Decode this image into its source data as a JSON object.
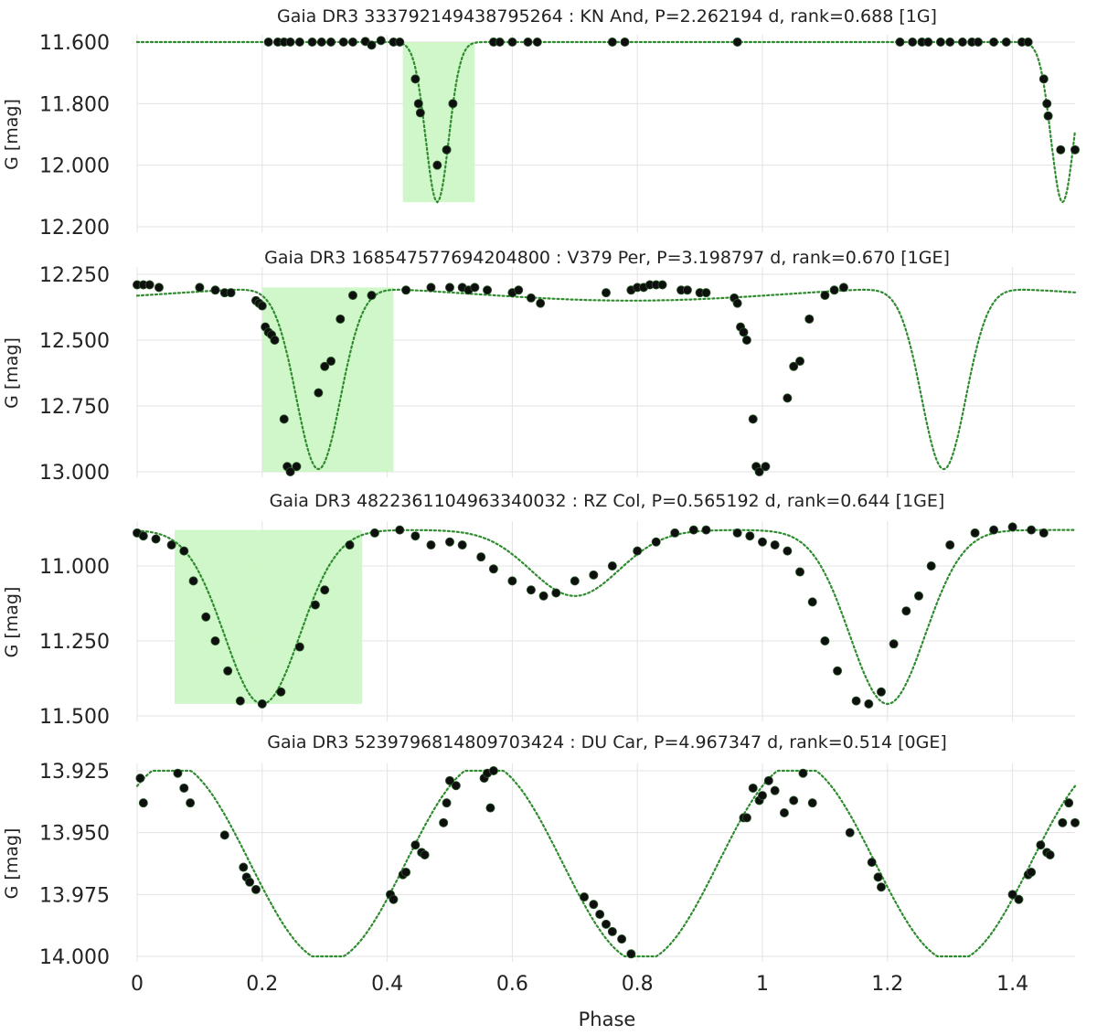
{
  "chart_data": [
    {
      "type": "scatter",
      "title": "Gaia DR3 333792149438795264 : KN And, P=2.262194 d, rank=0.688 [1G]",
      "ylabel": "G [mag]",
      "y_inverted": true,
      "ylim": [
        11.6,
        12.2
      ],
      "yticks": [
        11.6,
        11.8,
        12.0,
        12.2
      ],
      "ytick_labels": [
        "11.600",
        "11.800",
        "12.000",
        "12.200"
      ],
      "highlight": {
        "x": [
          0.425,
          0.54
        ],
        "y": [
          11.6,
          12.12
        ],
        "color": "#cdf7c6"
      },
      "model": {
        "type": "eclipse",
        "base": 11.6,
        "centers": [
          0.48,
          1.48
        ],
        "depth": 0.52,
        "width": 0.026,
        "color": "#2e8b2e"
      },
      "points": [
        [
          0.21,
          11.6
        ],
        [
          0.225,
          11.6
        ],
        [
          0.235,
          11.6
        ],
        [
          0.245,
          11.6
        ],
        [
          0.26,
          11.6
        ],
        [
          0.28,
          11.6
        ],
        [
          0.295,
          11.6
        ],
        [
          0.31,
          11.6
        ],
        [
          0.33,
          11.6
        ],
        [
          0.345,
          11.6
        ],
        [
          0.365,
          11.598
        ],
        [
          0.375,
          11.61
        ],
        [
          0.39,
          11.595
        ],
        [
          0.41,
          11.6
        ],
        [
          0.42,
          11.6
        ],
        [
          0.445,
          11.72
        ],
        [
          0.45,
          11.8
        ],
        [
          0.453,
          11.83
        ],
        [
          0.48,
          12.0
        ],
        [
          0.495,
          11.95
        ],
        [
          0.505,
          11.8
        ],
        [
          0.57,
          11.6
        ],
        [
          0.58,
          11.6
        ],
        [
          0.6,
          11.6
        ],
        [
          0.625,
          11.6
        ],
        [
          0.64,
          11.6
        ],
        [
          0.76,
          11.6
        ],
        [
          0.78,
          11.6
        ],
        [
          0.96,
          11.6
        ],
        [
          1.22,
          11.6
        ],
        [
          1.24,
          11.6
        ],
        [
          1.255,
          11.6
        ],
        [
          1.265,
          11.6
        ],
        [
          1.285,
          11.6
        ],
        [
          1.3,
          11.6
        ],
        [
          1.32,
          11.6
        ],
        [
          1.335,
          11.6
        ],
        [
          1.345,
          11.6
        ],
        [
          1.37,
          11.6
        ],
        [
          1.39,
          11.6
        ],
        [
          1.415,
          11.6
        ],
        [
          1.425,
          11.6
        ],
        [
          1.45,
          11.72
        ],
        [
          1.455,
          11.8
        ],
        [
          1.457,
          11.84
        ],
        [
          1.477,
          11.95
        ],
        [
          1.5,
          11.95
        ]
      ]
    },
    {
      "type": "scatter",
      "title": "Gaia DR3 168547577694204800 : V379 Per, P=3.198797 d, rank=0.670 [1GE]",
      "ylabel": "G [mag]",
      "y_inverted": true,
      "ylim": [
        12.25,
        13.0
      ],
      "yticks": [
        12.25,
        12.5,
        12.75,
        13.0
      ],
      "ytick_labels": [
        "12.250",
        "12.500",
        "12.750",
        "13.000"
      ],
      "highlight": {
        "x": [
          0.2,
          0.41
        ],
        "y": [
          12.3,
          13.0
        ],
        "color": "#cdf7c6"
      },
      "model": {
        "type": "eclipse2",
        "base": 12.3,
        "amp2": 0.05,
        "centers": [
          0.29,
          1.29
        ],
        "depth": 0.69,
        "width": 0.05,
        "color": "#2e8b2e"
      },
      "points": [
        [
          0.0,
          12.29
        ],
        [
          0.01,
          12.29
        ],
        [
          0.02,
          12.29
        ],
        [
          0.035,
          12.3
        ],
        [
          0.1,
          12.3
        ],
        [
          0.125,
          12.31
        ],
        [
          0.14,
          12.32
        ],
        [
          0.15,
          12.32
        ],
        [
          0.19,
          12.35
        ],
        [
          0.195,
          12.36
        ],
        [
          0.2,
          12.37
        ],
        [
          0.205,
          12.45
        ],
        [
          0.21,
          12.47
        ],
        [
          0.215,
          12.48
        ],
        [
          0.22,
          12.5
        ],
        [
          0.235,
          12.8
        ],
        [
          0.24,
          12.98
        ],
        [
          0.245,
          13.0
        ],
        [
          0.255,
          12.98
        ],
        [
          0.29,
          12.7
        ],
        [
          0.3,
          12.6
        ],
        [
          0.31,
          12.58
        ],
        [
          0.325,
          12.42
        ],
        [
          0.345,
          12.33
        ],
        [
          0.375,
          12.33
        ],
        [
          0.43,
          12.31
        ],
        [
          0.47,
          12.3
        ],
        [
          0.5,
          12.3
        ],
        [
          0.52,
          12.3
        ],
        [
          0.53,
          12.31
        ],
        [
          0.54,
          12.3
        ],
        [
          0.56,
          12.31
        ],
        [
          0.6,
          12.32
        ],
        [
          0.61,
          12.31
        ],
        [
          0.63,
          12.34
        ],
        [
          0.645,
          12.36
        ],
        [
          0.75,
          12.32
        ],
        [
          0.79,
          12.31
        ],
        [
          0.8,
          12.3
        ],
        [
          0.81,
          12.3
        ],
        [
          0.82,
          12.29
        ],
        [
          0.83,
          12.29
        ],
        [
          0.84,
          12.29
        ],
        [
          0.87,
          12.31
        ],
        [
          0.88,
          12.31
        ],
        [
          0.9,
          12.32
        ],
        [
          0.91,
          12.32
        ],
        [
          0.955,
          12.34
        ],
        [
          0.96,
          12.36
        ],
        [
          0.965,
          12.45
        ],
        [
          0.97,
          12.47
        ],
        [
          0.975,
          12.5
        ],
        [
          0.985,
          12.8
        ],
        [
          0.99,
          12.98
        ],
        [
          0.995,
          13.0
        ],
        [
          1.005,
          12.98
        ],
        [
          1.04,
          12.72
        ],
        [
          1.05,
          12.6
        ],
        [
          1.06,
          12.58
        ],
        [
          1.075,
          12.42
        ],
        [
          1.1,
          12.33
        ],
        [
          1.115,
          12.31
        ],
        [
          1.13,
          12.3
        ]
      ]
    },
    {
      "type": "scatter",
      "title": "Gaia DR3 4822361104963340032 : RZ Col, P=0.565192 d, rank=0.644 [1GE]",
      "ylabel": "G [mag]",
      "y_inverted": true,
      "ylim": [
        10.875,
        11.5
      ],
      "yticks": [
        11.0,
        11.25,
        11.5
      ],
      "ytick_labels": [
        "11.000",
        "11.250",
        "11.500"
      ],
      "highlight": {
        "x": [
          0.06,
          0.36
        ],
        "y": [
          10.88,
          11.46
        ],
        "color": "#cdf7c6"
      },
      "model": {
        "type": "wuma",
        "base": 10.88,
        "centers": [
          0.2,
          1.2
        ],
        "depth": 0.58,
        "width": 0.085,
        "sec_center": 0.7,
        "sec_depth": 0.22,
        "sec_width": 0.1,
        "color": "#2e8b2e"
      },
      "points": [
        [
          0.0,
          10.89
        ],
        [
          0.01,
          10.9
        ],
        [
          0.03,
          10.91
        ],
        [
          0.055,
          10.93
        ],
        [
          0.075,
          10.95
        ],
        [
          0.09,
          11.05
        ],
        [
          0.11,
          11.17
        ],
        [
          0.125,
          11.25
        ],
        [
          0.145,
          11.35
        ],
        [
          0.165,
          11.45
        ],
        [
          0.2,
          11.46
        ],
        [
          0.23,
          11.42
        ],
        [
          0.26,
          11.27
        ],
        [
          0.285,
          11.13
        ],
        [
          0.3,
          11.08
        ],
        [
          0.34,
          10.93
        ],
        [
          0.38,
          10.89
        ],
        [
          0.42,
          10.88
        ],
        [
          0.445,
          10.9
        ],
        [
          0.47,
          10.93
        ],
        [
          0.5,
          10.92
        ],
        [
          0.52,
          10.93
        ],
        [
          0.55,
          10.97
        ],
        [
          0.57,
          11.01
        ],
        [
          0.6,
          11.05
        ],
        [
          0.63,
          11.08
        ],
        [
          0.65,
          11.1
        ],
        [
          0.67,
          11.09
        ],
        [
          0.7,
          11.05
        ],
        [
          0.73,
          11.03
        ],
        [
          0.76,
          11.0
        ],
        [
          0.8,
          10.95
        ],
        [
          0.83,
          10.92
        ],
        [
          0.86,
          10.89
        ],
        [
          0.89,
          10.88
        ],
        [
          0.91,
          10.88
        ],
        [
          0.96,
          10.89
        ],
        [
          0.98,
          10.9
        ],
        [
          1.0,
          10.92
        ],
        [
          1.02,
          10.93
        ],
        [
          1.04,
          10.95
        ],
        [
          1.06,
          11.02
        ],
        [
          1.08,
          11.12
        ],
        [
          1.1,
          11.25
        ],
        [
          1.12,
          11.35
        ],
        [
          1.15,
          11.45
        ],
        [
          1.17,
          11.46
        ],
        [
          1.19,
          11.42
        ],
        [
          1.21,
          11.26
        ],
        [
          1.23,
          11.15
        ],
        [
          1.25,
          11.1
        ],
        [
          1.27,
          11.0
        ],
        [
          1.3,
          10.93
        ],
        [
          1.34,
          10.89
        ],
        [
          1.37,
          10.88
        ],
        [
          1.4,
          10.87
        ],
        [
          1.43,
          10.88
        ],
        [
          1.45,
          10.89
        ]
      ]
    },
    {
      "type": "scatter",
      "title": "Gaia DR3 5239796814809703424 : DU Car, P=4.967347 d, rank=0.514 [0GE]",
      "ylabel": "G [mag]",
      "y_inverted": true,
      "ylim": [
        13.925,
        14.0
      ],
      "yticks": [
        13.925,
        13.95,
        13.975,
        14.0
      ],
      "ytick_labels": [
        "13.925",
        "13.950",
        "13.975",
        "14.000"
      ],
      "model": {
        "type": "sine",
        "mid": 13.962,
        "amp": 0.04,
        "period": 0.5,
        "maxAt": 0.055,
        "color": "#2e8b2e"
      },
      "points": [
        [
          0.005,
          13.928
        ],
        [
          0.01,
          13.938
        ],
        [
          0.065,
          13.926
        ],
        [
          0.075,
          13.932
        ],
        [
          0.085,
          13.938
        ],
        [
          0.14,
          13.951
        ],
        [
          0.17,
          13.964
        ],
        [
          0.175,
          13.968
        ],
        [
          0.18,
          13.97
        ],
        [
          0.19,
          13.973
        ],
        [
          0.405,
          13.975
        ],
        [
          0.41,
          13.977
        ],
        [
          0.425,
          13.967
        ],
        [
          0.43,
          13.966
        ],
        [
          0.445,
          13.955
        ],
        [
          0.455,
          13.958
        ],
        [
          0.46,
          13.959
        ],
        [
          0.49,
          13.946
        ],
        [
          0.495,
          13.938
        ],
        [
          0.5,
          13.929
        ],
        [
          0.51,
          13.931
        ],
        [
          0.555,
          13.928
        ],
        [
          0.56,
          13.926
        ],
        [
          0.565,
          13.94
        ],
        [
          0.57,
          13.925
        ],
        [
          0.715,
          13.976
        ],
        [
          0.73,
          13.979
        ],
        [
          0.74,
          13.983
        ],
        [
          0.75,
          13.987
        ],
        [
          0.76,
          13.99
        ],
        [
          0.775,
          13.993
        ],
        [
          0.79,
          13.999
        ],
        [
          0.97,
          13.944
        ],
        [
          0.975,
          13.944
        ],
        [
          0.985,
          13.932
        ],
        [
          0.995,
          13.937
        ],
        [
          1.0,
          13.935
        ],
        [
          1.01,
          13.929
        ],
        [
          1.02,
          13.933
        ],
        [
          1.035,
          13.942
        ],
        [
          1.05,
          13.937
        ],
        [
          1.065,
          13.926
        ],
        [
          1.08,
          13.938
        ],
        [
          1.14,
          13.95
        ],
        [
          1.175,
          13.962
        ],
        [
          1.185,
          13.968
        ],
        [
          1.19,
          13.972
        ],
        [
          1.4,
          13.975
        ],
        [
          1.41,
          13.977
        ],
        [
          1.425,
          13.967
        ],
        [
          1.43,
          13.966
        ],
        [
          1.445,
          13.955
        ],
        [
          1.455,
          13.958
        ],
        [
          1.46,
          13.959
        ],
        [
          1.48,
          13.946
        ],
        [
          1.49,
          13.938
        ],
        [
          1.5,
          13.946
        ]
      ]
    }
  ],
  "xaxis": {
    "label": "Phase",
    "range": [
      0,
      1.5
    ],
    "ticks": [
      0,
      0.2,
      0.4,
      0.6,
      0.8,
      1,
      1.2,
      1.4
    ],
    "tick_labels": [
      "0",
      "0.2",
      "0.4",
      "0.6",
      "0.8",
      "1",
      "1.2",
      "1.4"
    ]
  },
  "style": {
    "point_color": "#0f0f0f",
    "grid_color": "#e3e3e3",
    "text_color": "#222222"
  }
}
